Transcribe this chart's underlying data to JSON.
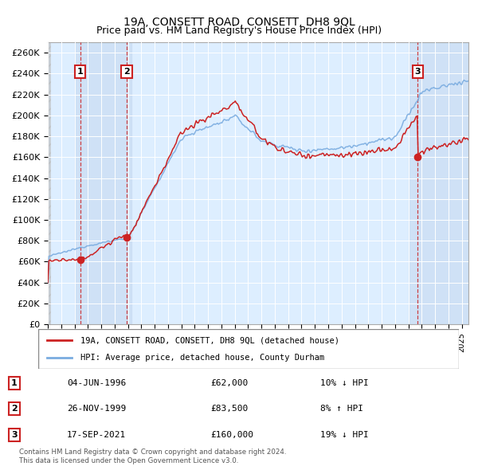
{
  "title1": "19A, CONSETT ROAD, CONSETT, DH8 9QL",
  "title2": "Price paid vs. HM Land Registry's House Price Index (HPI)",
  "ylabel_vals": [
    0,
    20000,
    40000,
    60000,
    80000,
    100000,
    120000,
    140000,
    160000,
    180000,
    200000,
    220000,
    240000,
    260000
  ],
  "ylim": [
    0,
    270000
  ],
  "xlim_years": [
    1994,
    2025.5
  ],
  "legend_line1": "19A, CONSETT ROAD, CONSETT, DH8 9QL (detached house)",
  "legend_line2": "HPI: Average price, detached house, County Durham",
  "sale_points": [
    {
      "label": "1",
      "year": 1996.43,
      "price": 62000,
      "date": "04-JUN-1996",
      "pct": "10% ↓ HPI"
    },
    {
      "label": "2",
      "year": 1999.9,
      "price": 83500,
      "date": "26-NOV-1999",
      "pct": "8% ↑ HPI"
    },
    {
      "label": "3",
      "year": 2021.71,
      "price": 160000,
      "date": "17-SEP-2021",
      "pct": "19% ↓ HPI"
    }
  ],
  "footnote1": "Contains HM Land Registry data © Crown copyright and database right 2024.",
  "footnote2": "This data is licensed under the Open Government Licence v3.0.",
  "hpi_color": "#7aace0",
  "sale_color": "#cc2222",
  "bg_color": "#ffffff",
  "plot_bg": "#ddeeff",
  "grid_color": "#ffffff"
}
